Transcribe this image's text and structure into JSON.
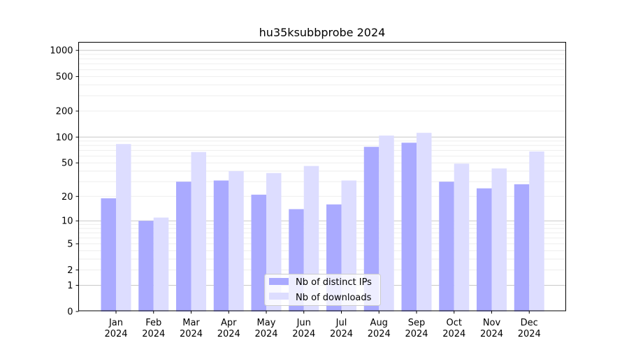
{
  "chart_data": {
    "type": "bar",
    "title": "hu35ksubbprobe 2024",
    "xlabel": "",
    "ylabel": "",
    "yscale": "symlog",
    "ylim": [
      0,
      1200
    ],
    "yticks": [
      0,
      1,
      2,
      5,
      10,
      20,
      50,
      100,
      200,
      500,
      1000
    ],
    "grid": true,
    "legend_placement": "bottom-center",
    "categories": [
      "Jan\n2024",
      "Feb\n2024",
      "Mar\n2024",
      "Apr\n2024",
      "May\n2024",
      "Jun\n2024",
      "Jul\n2024",
      "Aug\n2024",
      "Sep\n2024",
      "Oct\n2024",
      "Nov\n2024",
      "Dec\n2024"
    ],
    "series": [
      {
        "name": "Nb of distinct IPs",
        "color": "#aaaaff",
        "values": [
          19,
          10,
          30,
          31,
          21,
          14,
          16,
          77,
          86,
          30,
          25,
          28
        ]
      },
      {
        "name": "Nb of downloads",
        "color": "#ddddff",
        "values": [
          83,
          11,
          67,
          40,
          38,
          46,
          31,
          104,
          112,
          49,
          43,
          68
        ]
      }
    ]
  }
}
